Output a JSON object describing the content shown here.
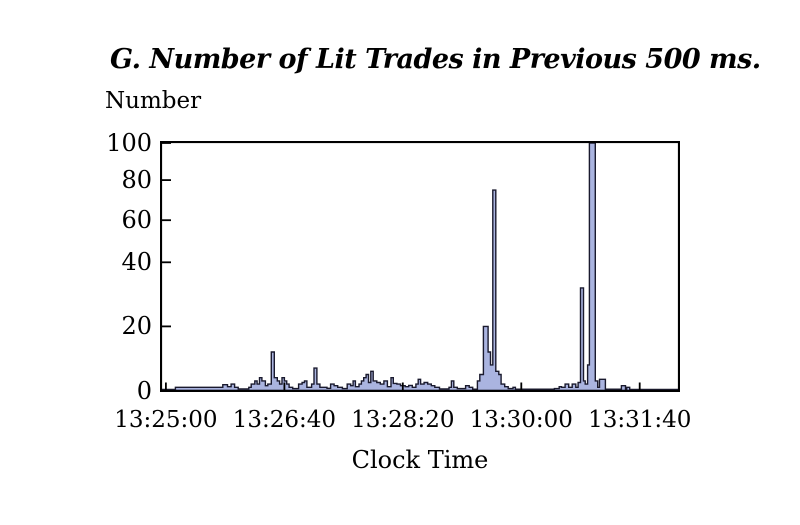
{
  "figure": {
    "title": "G. Number of Lit Trades in Previous 500 ms.",
    "y_axis_title": "Number",
    "x_axis_title": "Clock Time"
  },
  "chart_data": {
    "type": "area",
    "title": "G. Number of Lit Trades in Previous 500 ms.",
    "xlabel": "Clock Time",
    "ylabel": "Number",
    "x_tick_labels": [
      "13:25:00",
      "13:26:40",
      "13:28:20",
      "13:30:00",
      "13:31:40"
    ],
    "x_tick_seconds": [
      0,
      100,
      200,
      300,
      400
    ],
    "x_domain_seconds": [
      -5,
      434
    ],
    "y_ticks": [
      0,
      20,
      40,
      60,
      80,
      100
    ],
    "y_tick_fractions_from_top": [
      1.0,
      0.741,
      0.482,
      0.312,
      0.15,
      0.0
    ],
    "ylim": [
      0,
      100
    ],
    "grid": false,
    "legend": false,
    "series_name": "lit-trades-count",
    "points_format": "[seconds after 13:25:00, number of lit trades]; step series, value holds until next point",
    "points": [
      [
        -5,
        0.3
      ],
      [
        8,
        1
      ],
      [
        48,
        1.8
      ],
      [
        52,
        1.2
      ],
      [
        55,
        2
      ],
      [
        58,
        1
      ],
      [
        61,
        0.5
      ],
      [
        70,
        1
      ],
      [
        72,
        2
      ],
      [
        75,
        3
      ],
      [
        77,
        2
      ],
      [
        79,
        4
      ],
      [
        81,
        3
      ],
      [
        84,
        1.5
      ],
      [
        86,
        2
      ],
      [
        89,
        12
      ],
      [
        91.5,
        4
      ],
      [
        94,
        3
      ],
      [
        96,
        2
      ],
      [
        98,
        4
      ],
      [
        100,
        3
      ],
      [
        102,
        2
      ],
      [
        104,
        1
      ],
      [
        107,
        0.6
      ],
      [
        112,
        2
      ],
      [
        115,
        2.5
      ],
      [
        117,
        3
      ],
      [
        119,
        1
      ],
      [
        123,
        2
      ],
      [
        125,
        7
      ],
      [
        127.5,
        2
      ],
      [
        130,
        1
      ],
      [
        136,
        0.7
      ],
      [
        139,
        2
      ],
      [
        142,
        1.5
      ],
      [
        145,
        1
      ],
      [
        149,
        0.6
      ],
      [
        153,
        2
      ],
      [
        156,
        1.5
      ],
      [
        158,
        3
      ],
      [
        160,
        1.2
      ],
      [
        163,
        2
      ],
      [
        165,
        3
      ],
      [
        167,
        4
      ],
      [
        169,
        5
      ],
      [
        171,
        2.5
      ],
      [
        173,
        6
      ],
      [
        175,
        3
      ],
      [
        178,
        2.5
      ],
      [
        181,
        2
      ],
      [
        184,
        3
      ],
      [
        187,
        1.2
      ],
      [
        190,
        4
      ],
      [
        192,
        2.2
      ],
      [
        195,
        2
      ],
      [
        198,
        1.5
      ],
      [
        202,
        1.2
      ],
      [
        205,
        1.6
      ],
      [
        208,
        1
      ],
      [
        211,
        2
      ],
      [
        213,
        3.5
      ],
      [
        215,
        2
      ],
      [
        218,
        2.5
      ],
      [
        221,
        2
      ],
      [
        224,
        1.5
      ],
      [
        227,
        1
      ],
      [
        231,
        0.5
      ],
      [
        239,
        1
      ],
      [
        241,
        3
      ],
      [
        243,
        1
      ],
      [
        246,
        0.6
      ],
      [
        253,
        1.5
      ],
      [
        256,
        1
      ],
      [
        259,
        0.4
      ],
      [
        263,
        3
      ],
      [
        265,
        5
      ],
      [
        268,
        20
      ],
      [
        272,
        12
      ],
      [
        274,
        8
      ],
      [
        276,
        75
      ],
      [
        278.5,
        6
      ],
      [
        281,
        5
      ],
      [
        283,
        2
      ],
      [
        286,
        1.2
      ],
      [
        289,
        0.6
      ],
      [
        293,
        1
      ],
      [
        295,
        0.4
      ],
      [
        328,
        0.6
      ],
      [
        332,
        1.2
      ],
      [
        334,
        1
      ],
      [
        337,
        2
      ],
      [
        340,
        1
      ],
      [
        343,
        2
      ],
      [
        346,
        1
      ],
      [
        348,
        2.5
      ],
      [
        350,
        32
      ],
      [
        352.5,
        3
      ],
      [
        354,
        2
      ],
      [
        356,
        8
      ],
      [
        357.5,
        100
      ],
      [
        362.5,
        3
      ],
      [
        364.5,
        1
      ],
      [
        366,
        3.5
      ],
      [
        371,
        0.4
      ],
      [
        384.5,
        1.5
      ],
      [
        388,
        0.35
      ],
      [
        389,
        1
      ],
      [
        391.5,
        0.3
      ]
    ],
    "colors": {
      "fill": "#aab4e0",
      "outline": "#1a1a2e",
      "axis": "#000000",
      "text": "#000000",
      "background": "#ffffff"
    }
  }
}
